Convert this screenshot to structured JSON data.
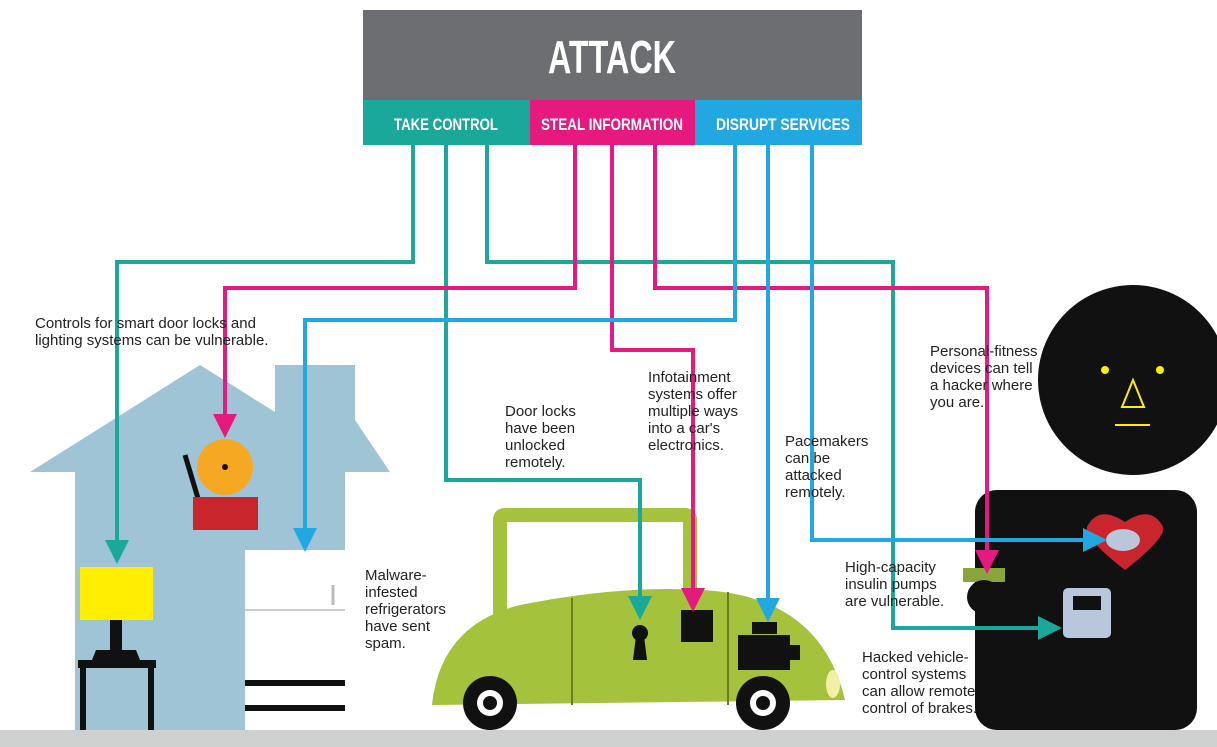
{
  "header": {
    "title": "ATTACK",
    "categories": [
      "TAKE CONTROL",
      "STEAL INFORMATION",
      "DISRUPT SERVICES"
    ]
  },
  "notes": [
    {
      "lines": [
        "Controls for smart door locks and",
        "lighting systems can be vulnerable."
      ]
    },
    {
      "lines": [
        "Malware-",
        "infested",
        "refrigerators",
        "have sent",
        "spam."
      ]
    },
    {
      "lines": [
        "Door locks",
        "have been",
        "unlocked",
        "remotely."
      ]
    },
    {
      "lines": [
        "Infotainment",
        "systems offer",
        "multiple ways",
        "into a car's",
        "electronics."
      ]
    },
    {
      "lines": [
        "Pacemakers",
        "can be",
        "attacked",
        "remotely."
      ]
    },
    {
      "lines": [
        "Personal-fitness",
        "devices can tell",
        "a hacker where",
        "you are."
      ]
    },
    {
      "lines": [
        "High-capacity",
        "insulin pumps",
        "are vulnerable."
      ]
    },
    {
      "lines": [
        "Hacked vehicle-",
        "control systems",
        "can allow remote",
        "control of brakes."
      ]
    }
  ]
}
